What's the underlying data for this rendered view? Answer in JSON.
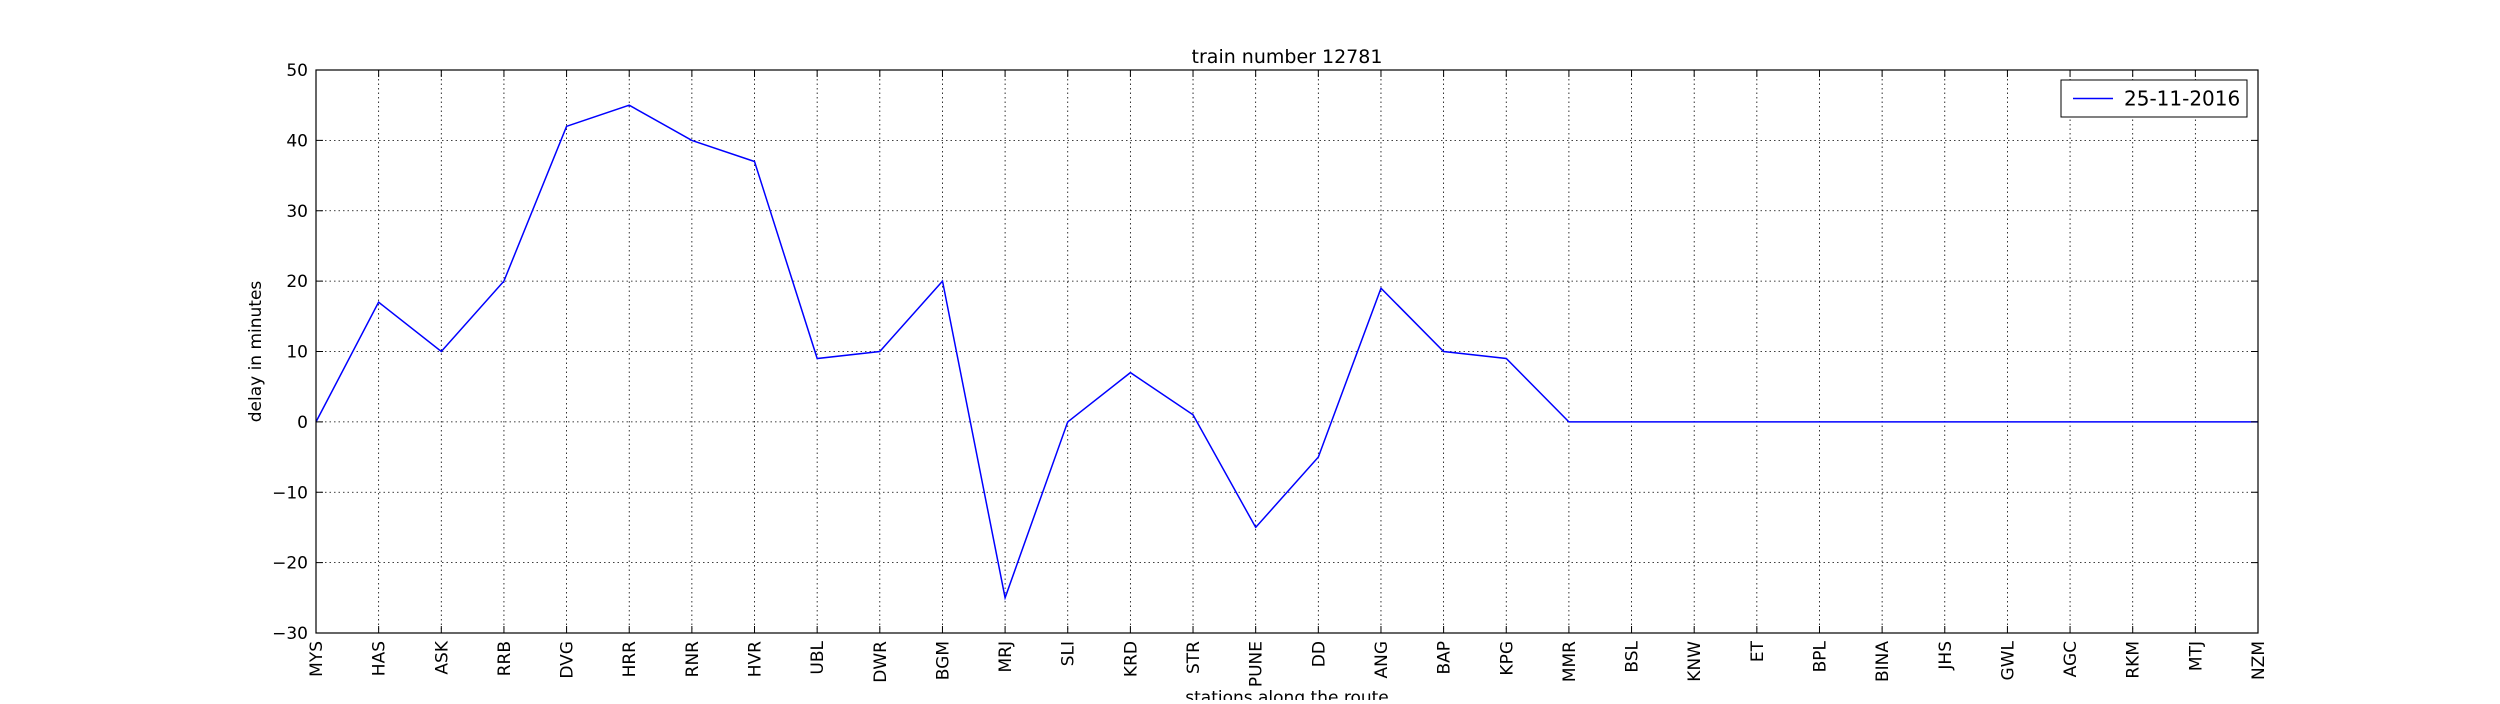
{
  "chart_data": {
    "type": "line",
    "title": "train number 12781",
    "xlabel": "stations along the route",
    "ylabel": "delay in minutes",
    "categories": [
      "MYS",
      "HAS",
      "ASK",
      "RRB",
      "DVG",
      "HRR",
      "RNR",
      "HVR",
      "UBL",
      "DWR",
      "BGM",
      "MRJ",
      "SLI",
      "KRD",
      "STR",
      "PUNE",
      "DD",
      "ANG",
      "BAP",
      "KPG",
      "MMR",
      "BSL",
      "KNW",
      "ET",
      "BPL",
      "BINA",
      "JHS",
      "GWL",
      "AGC",
      "RKM",
      "MTJ",
      "NZM"
    ],
    "series": [
      {
        "name": "25-11-2016",
        "color": "#0000ff",
        "values": [
          0,
          17,
          10,
          20,
          42,
          45,
          40,
          37,
          9,
          10,
          20,
          -25,
          0,
          7,
          1,
          -15,
          -5,
          19,
          10,
          9,
          0,
          0,
          0,
          0,
          0,
          0,
          0,
          0,
          0,
          0,
          0,
          0
        ]
      }
    ],
    "ylim": [
      -30,
      50
    ],
    "yticks": [
      -30,
      -20,
      -10,
      0,
      10,
      20,
      30,
      40,
      50
    ],
    "ytick_labels": [
      "−30",
      "−20",
      "−10",
      "0",
      "10",
      "20",
      "30",
      "40",
      "50"
    ],
    "grid": true,
    "legend_position": "top-right"
  }
}
